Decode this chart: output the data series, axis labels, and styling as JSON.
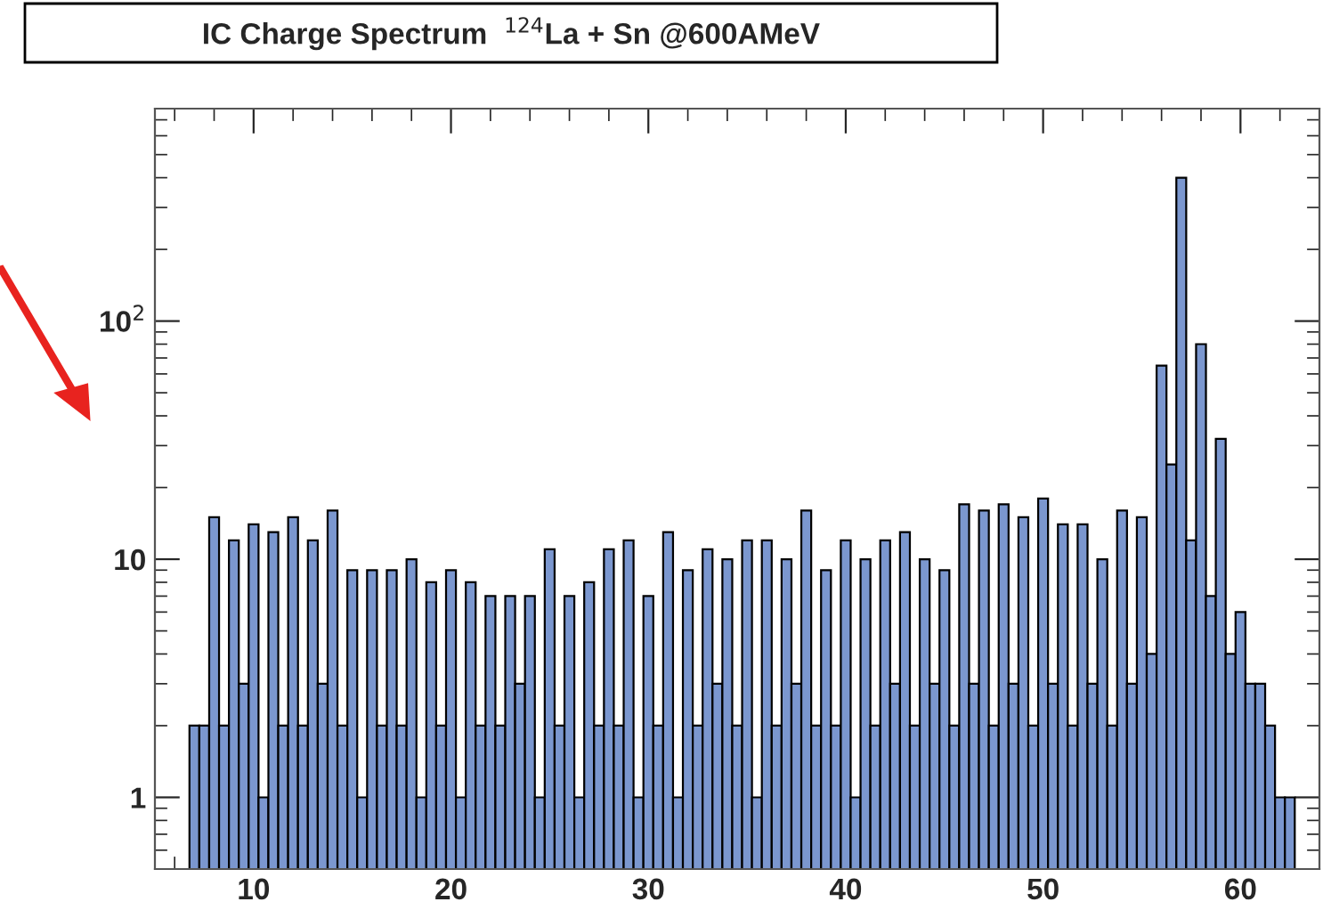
{
  "chart_data": {
    "type": "histogram",
    "title": "IC Charge Spectrum  $^{124}$La + Sn @600AMeV",
    "bins": [
      6.75,
      7.25,
      7.75,
      8.25,
      8.75,
      9.25,
      9.75,
      10.25,
      10.75,
      11.25,
      11.75,
      12.25,
      12.75,
      13.25,
      13.75,
      14.25,
      14.75,
      15.25,
      15.75,
      16.25,
      16.75,
      17.25,
      17.75,
      18.25,
      18.75,
      19.25,
      19.75,
      20.25,
      20.75,
      21.25,
      21.75,
      22.25,
      22.75,
      23.25,
      23.75,
      24.25,
      24.75,
      25.25,
      25.75,
      26.25,
      26.75,
      27.25,
      27.75,
      28.25,
      28.75,
      29.25,
      29.75,
      30.25,
      30.75,
      31.25,
      31.75,
      32.25,
      32.75,
      33.25,
      33.75,
      34.25,
      34.75,
      35.25,
      35.75,
      36.25,
      36.75,
      37.25,
      37.75,
      38.25,
      38.75,
      39.25,
      39.75,
      40.25,
      40.75,
      41.25,
      41.75,
      42.25,
      42.75,
      43.25,
      43.75,
      44.25,
      44.75,
      45.25,
      45.75,
      46.25,
      46.75,
      47.25,
      47.75,
      48.25,
      48.75,
      49.25,
      49.75,
      50.25,
      50.75,
      51.25,
      51.75,
      52.25,
      52.75,
      53.25,
      53.75,
      54.25,
      54.75,
      55.25,
      55.75,
      56.25,
      56.75,
      57.25,
      57.75,
      58.25,
      58.75,
      59.25,
      59.75,
      60.25,
      60.75,
      61.25,
      61.75,
      62.25,
      62.75
    ],
    "values": [
      2,
      2,
      15,
      2,
      12,
      3,
      14,
      1,
      13,
      2,
      15,
      2,
      12,
      3,
      16,
      2,
      9,
      1,
      9,
      2,
      9,
      2,
      10,
      1,
      8,
      2,
      9,
      1,
      8,
      2,
      7,
      2,
      7,
      3,
      7,
      1,
      11,
      2,
      7,
      1,
      8,
      2,
      11,
      2,
      12,
      1,
      7,
      2,
      13,
      1,
      9,
      2,
      11,
      3,
      10,
      2,
      12,
      1,
      12,
      2,
      10,
      3,
      16,
      2,
      9,
      2,
      12,
      1,
      10,
      2,
      12,
      3,
      13,
      2,
      10,
      3,
      9,
      2,
      17,
      3,
      16,
      2,
      17,
      3,
      15,
      2,
      18,
      3,
      14,
      2,
      14,
      3,
      10,
      2,
      16,
      3,
      15,
      4,
      65,
      25,
      400,
      12,
      80,
      7,
      32,
      4,
      6,
      3,
      3,
      2,
      1,
      1
    ],
    "color": "#7b97cf",
    "log": true,
    "xlim": [
      5,
      64
    ],
    "xticks": [
      10,
      20,
      30,
      40,
      50,
      60
    ],
    "ylim": [
      0.5,
      780
    ],
    "yticks": [
      1,
      10,
      {
        "value": 100,
        "label": "10$^{2}$"
      }
    ],
    "grid": false
  }
}
